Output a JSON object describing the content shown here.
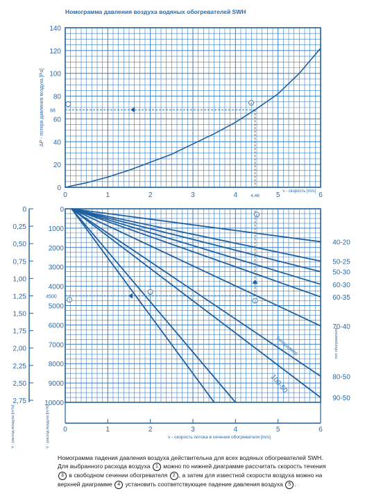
{
  "title": "Номограмма давления воздуха водяных обогревателей SWH",
  "colors": {
    "grid": "#3a7fc1",
    "frame": "#1f5f9f",
    "text": "#2a6aab",
    "curve": "#1f5f9f"
  },
  "chart_data": [
    {
      "type": "line",
      "name": "top",
      "ylabel": "ΔP - потеря давления воздуха [Pa]",
      "xlabel": "v - скорость [m/s]",
      "xlim": [
        0,
        6
      ],
      "ylim": [
        0,
        140
      ],
      "x_ticks": [
        "0",
        "1",
        "2",
        "3",
        "4",
        "5",
        "6"
      ],
      "y_ticks": [
        "0",
        "20",
        "40",
        "60",
        "80",
        "100",
        "120",
        "140"
      ],
      "grid": true,
      "curve": {
        "x": [
          0,
          0.5,
          1,
          1.5,
          2,
          2.5,
          3,
          3.5,
          4,
          4.46,
          5,
          5.5,
          6
        ],
        "y": [
          0,
          4,
          9,
          15,
          22,
          29,
          38,
          47,
          57,
          68,
          82,
          100,
          122
        ]
      },
      "annotations": {
        "marker_68": "68",
        "marker_446": "4,46",
        "circle_4": "4",
        "circle_5": "5"
      }
    },
    {
      "type": "line",
      "name": "bottom",
      "ylabel_left": "V - расход воздуха [m³/s]",
      "ylabel_inner": "V - расход воздуха [m³/h]",
      "xlabel": "v - скорость потока в сечении обогревателя [m/s]",
      "right_label": "тип обогревателя",
      "xlim": [
        0,
        6
      ],
      "ylim": [
        0,
        10000
      ],
      "x_ticks": [
        "0",
        "1",
        "2",
        "3",
        "4",
        "5",
        "6"
      ],
      "y_ticks": [
        "0",
        "1000",
        "2000",
        "3000",
        "4000",
        "5000",
        "6000",
        "7000",
        "8000",
        "9000",
        "10000"
      ],
      "y_ticks_m3s": [
        "0",
        "0,25",
        "0,50",
        "0,75",
        "1,00",
        "1,25",
        "1,50",
        "1,75",
        "2,00",
        "2,25",
        "2,50",
        "2,75"
      ],
      "grid": true,
      "series": [
        {
          "name": "40-20",
          "end": [
            6,
            1700
          ]
        },
        {
          "name": "50-25",
          "end": [
            6,
            2700
          ]
        },
        {
          "name": "50-30",
          "end": [
            6,
            3250
          ]
        },
        {
          "name": "60-30",
          "end": [
            6,
            3900
          ]
        },
        {
          "name": "60-35",
          "end": [
            6,
            4550
          ]
        },
        {
          "name": "70-40",
          "end": [
            6,
            6050
          ]
        },
        {
          "name": "80-50",
          "end": [
            6,
            8650
          ]
        },
        {
          "name": "90-50",
          "end": [
            6,
            9750
          ]
        },
        {
          "name": "",
          "end": [
            4.0,
            10000
          ]
        },
        {
          "name": "",
          "end": [
            3.5,
            10000
          ]
        }
      ],
      "curve_labels": {
        "type_100_50": "100-50",
        "type_other": "Типоразмер"
      },
      "annotations": {
        "marker_4500": "4500",
        "circle_1": "1",
        "circle_2": "2",
        "circle_3": "3",
        "circle_6": "6"
      }
    }
  ],
  "footer": {
    "line1": "Номограмма падения давления воздуха действительна для всех водяных обогревателей SWH.",
    "line2a": "Для выбранного расхода воздуха",
    "c1": "1",
    "line2b": "можно по нижней диаграмме рассчитать скорость течения",
    "c3": "3",
    "line3a": "в свободном сечении обогревателя",
    "c2": "2",
    "line3b": ", а затем для известной скорости воздуха можно на",
    "line4a": "верхней диаграмме",
    "c4": "4",
    "line4b": "установить соответствующее падение давления воздуха",
    "c5": "5",
    "line4c": "."
  }
}
